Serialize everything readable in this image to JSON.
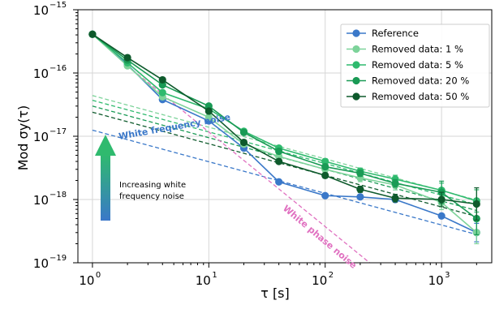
{
  "chart_data": {
    "type": "line",
    "xlabel": "τ [s]",
    "ylabel": "Mod σy(τ)",
    "x_scale": "log",
    "y_scale": "log",
    "xlim": [
      0.75,
      2700
    ],
    "ylim": [
      1e-19,
      1e-15
    ],
    "x_ticks": [
      {
        "value": 1,
        "base": "10",
        "exp": "0"
      },
      {
        "value": 10,
        "base": "10",
        "exp": "1"
      },
      {
        "value": 100,
        "base": "10",
        "exp": "2"
      },
      {
        "value": 1000,
        "base": "10",
        "exp": "3"
      }
    ],
    "y_ticks": [
      {
        "value": 1e-19,
        "base": "10",
        "exp": "−19"
      },
      {
        "value": 1e-18,
        "base": "10",
        "exp": "−18"
      },
      {
        "value": 1e-17,
        "base": "10",
        "exp": "−17"
      },
      {
        "value": 1e-16,
        "base": "10",
        "exp": "−16"
      },
      {
        "value": 1e-15,
        "base": "10",
        "exp": "−15"
      }
    ],
    "grid": true,
    "legend_position": "top-right",
    "x": [
      1,
      2,
      4,
      10,
      20,
      40,
      100,
      200,
      400,
      1000,
      2000
    ],
    "series": [
      {
        "name": "Reference",
        "color": "#3a78c9",
        "values": [
          4.1e-16,
          1.35e-16,
          3.8e-17,
          1.75e-17,
          6.5e-18,
          1.9e-18,
          1.15e-18,
          1.1e-18,
          1e-18,
          5.5e-19,
          3e-19
        ],
        "errors": [
          0,
          0,
          0,
          0,
          0,
          0,
          0,
          0,
          0,
          0,
          0.4
        ]
      },
      {
        "name": "Removed data: 1 %",
        "color": "#7dd39a",
        "values": [
          4.1e-16,
          1.3e-16,
          4.2e-17,
          2e-17,
          7.5e-18,
          4.8e-18,
          3e-18,
          2.2e-18,
          1.7e-18,
          9e-19,
          3e-19
        ],
        "errors": [
          0,
          0,
          0,
          0,
          0,
          0,
          0.12,
          0.15,
          0.2,
          0.3,
          0.5
        ]
      },
      {
        "name": "Removed data: 5 %",
        "color": "#2fba6e",
        "values": [
          4.1e-16,
          1.45e-16,
          4.9e-17,
          2.7e-17,
          1.2e-17,
          6.5e-18,
          4e-18,
          2.8e-18,
          2.1e-18,
          1.4e-18,
          9.5e-19
        ],
        "errors": [
          0,
          0,
          0,
          0,
          0,
          0,
          0.1,
          0.12,
          0.15,
          0.3,
          0.5
        ]
      },
      {
        "name": "Removed data: 20 %",
        "color": "#1a9a55",
        "values": [
          4.1e-16,
          1.6e-16,
          6.5e-17,
          3e-17,
          1.15e-17,
          5.8e-18,
          3.3e-18,
          2.6e-18,
          1.8e-18,
          1.3e-18,
          5e-19
        ],
        "errors": [
          0,
          0,
          0,
          0,
          0,
          0,
          0.1,
          0.12,
          0.15,
          0.5,
          0.8
        ]
      },
      {
        "name": "Removed data: 50 %",
        "color": "#0e5a2c",
        "values": [
          4.1e-16,
          1.75e-16,
          7.8e-17,
          2.5e-17,
          8e-18,
          4e-18,
          2.4e-18,
          1.45e-18,
          1.05e-18,
          1e-18,
          8.5e-19
        ],
        "errors": [
          0,
          0,
          0,
          0,
          0,
          0,
          0.1,
          0.12,
          0.15,
          0.3,
          0.8
        ]
      }
    ],
    "fits": [
      {
        "color": "#3a78c9",
        "x1": 1,
        "y1": 1.25e-17,
        "x2": 2000,
        "y2": 2.8e-19
      },
      {
        "color": "#7dd39a",
        "x1": 1,
        "y1": 4.4e-17,
        "x2": 2000,
        "y2": 9.8e-19
      },
      {
        "color": "#2fba6e",
        "x1": 1,
        "y1": 3.7e-17,
        "x2": 2000,
        "y2": 8.3e-19
      },
      {
        "color": "#1a9a55",
        "x1": 1,
        "y1": 3e-17,
        "x2": 2000,
        "y2": 6.7e-19
      },
      {
        "color": "#0e5a2c",
        "x1": 1,
        "y1": 2.4e-17,
        "x2": 2000,
        "y2": 5.4e-19
      },
      {
        "color": "#e070c0",
        "x1": 2,
        "y1": 1.3e-16,
        "x2": 280,
        "y2": 8e-20
      }
    ],
    "annotations": {
      "white_frequency": {
        "text": "White frequency noise",
        "color": "#3a78c9"
      },
      "white_phase": {
        "text": "White phase noise",
        "color": "#e070c0"
      },
      "increasing": {
        "line1": "Increasing white",
        "line2": "frequency noise"
      }
    }
  }
}
